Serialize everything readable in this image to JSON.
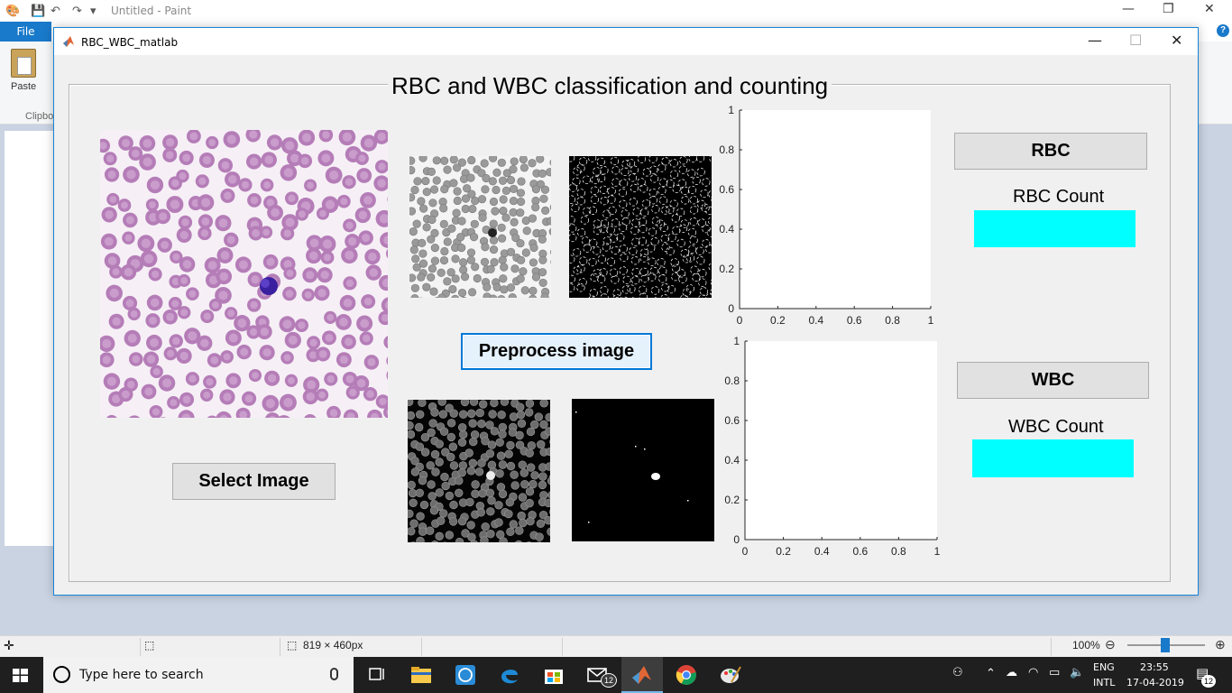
{
  "paint": {
    "window_title": "Untitled - Paint",
    "file_tab": "File",
    "help_glyph": "?",
    "paste_label": "Paste",
    "clipboard_label": "Clipbo",
    "status_size": "819 × 460px",
    "zoom": "100%"
  },
  "figure": {
    "window_title": "RBC_WBC_matlab",
    "panel_title": "RBC and WBC classification and counting",
    "buttons": {
      "select_image": "Select Image",
      "preprocess": "Preprocess image",
      "rbc": "RBC",
      "wbc": "WBC"
    },
    "labels": {
      "rbc_count": "RBC Count",
      "wbc_count": "WBC Count"
    },
    "count_color": "#00ffff",
    "axes": [
      {
        "id": "axes-rbc",
        "xlim": [
          0,
          1
        ],
        "ylim": [
          0,
          1
        ],
        "xticks": [
          "0",
          "0.2",
          "0.4",
          "0.6",
          "0.8",
          "1"
        ],
        "yticks": [
          "0",
          "0.2",
          "0.4",
          "0.6",
          "0.8",
          "1"
        ]
      },
      {
        "id": "axes-wbc",
        "xlim": [
          0,
          1
        ],
        "ylim": [
          0,
          1
        ],
        "xticks": [
          "0",
          "0.2",
          "0.4",
          "0.6",
          "0.8",
          "1"
        ],
        "yticks": [
          "0",
          "0.2",
          "0.4",
          "0.6",
          "0.8",
          "1"
        ]
      }
    ]
  },
  "taskbar": {
    "search_placeholder": "Type here to search",
    "language_top": "ENG",
    "language_bottom": "INTL",
    "time": "23:55",
    "date": "17-04-2019",
    "mail_badge": "12",
    "notification_badge": "12",
    "icons": [
      "task-view-icon",
      "file-explorer-icon",
      "whatsapp-icon",
      "edge-icon",
      "store-icon",
      "mail-icon",
      "matlab-icon",
      "chrome-icon",
      "paint-icon"
    ]
  }
}
